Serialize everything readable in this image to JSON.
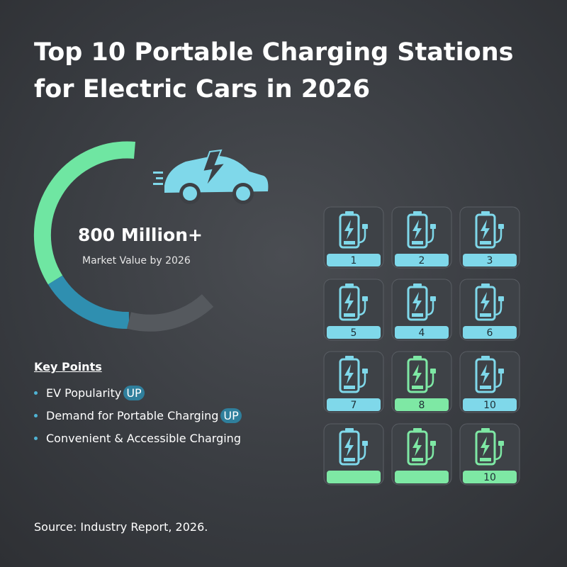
{
  "title_line1": "Top 10 Portable Charging Stations",
  "title_line2": "for Electric Cars in 2026",
  "stat": {
    "headline": "800 Million+",
    "caption": "Market Value by 2026"
  },
  "key_points": {
    "heading": "Key Points",
    "items": [
      {
        "text": "EV Popularity",
        "badge": "UP"
      },
      {
        "text": "Demand for Portable Charging",
        "badge": "UP"
      },
      {
        "text": "Convenient & Accessible Charging"
      }
    ]
  },
  "cards": [
    {
      "label": "1",
      "tone": "blue"
    },
    {
      "label": "2",
      "tone": "blue"
    },
    {
      "label": "3",
      "tone": "blue"
    },
    {
      "label": "5",
      "tone": "blue"
    },
    {
      "label": "4",
      "tone": "blue"
    },
    {
      "label": "6",
      "tone": "blue"
    },
    {
      "label": "7",
      "tone": "blue"
    },
    {
      "label": "8",
      "tone": "green"
    },
    {
      "label": "10",
      "tone": "blue"
    },
    {
      "label": null,
      "tone": "mixed"
    },
    {
      "label": null,
      "tone": "green"
    },
    {
      "label": "10",
      "tone": "green"
    }
  ],
  "source": "Source: Industry Report, 2026."
}
